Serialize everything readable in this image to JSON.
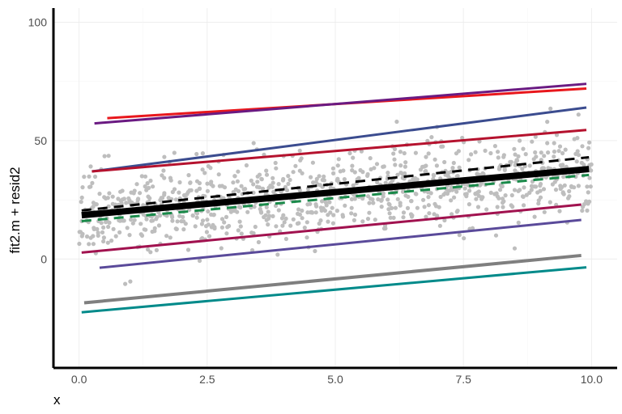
{
  "chart_data": {
    "type": "scatter",
    "title": "",
    "xlabel": "x",
    "ylabel": "fit2.m + resid2",
    "xlim": [
      -0.5,
      10.5
    ],
    "ylim": [
      -46,
      106
    ],
    "x_ticks": [
      0,
      2.5,
      5,
      7.5,
      10
    ],
    "x_tick_labels": [
      "0.0",
      "2.5",
      "5.0",
      "7.5",
      "10.0"
    ],
    "y_ticks": [
      0,
      50,
      100
    ],
    "y_tick_labels": [
      "0",
      "50",
      "100"
    ],
    "grid": true,
    "legend": "none",
    "colors": {
      "points": "#bebebe",
      "axis": "#000000"
    },
    "points": {
      "n": 1000,
      "seed": 7,
      "x_range": [
        0,
        10
      ],
      "intercept": 18.5,
      "slope": 1.9,
      "residual_sd": 8.5,
      "outliers": [
        [
          0.9,
          -10.5
        ],
        [
          1.0,
          -9.5
        ],
        [
          8.5,
          4.5
        ],
        [
          9.2,
          63.5
        ],
        [
          6.2,
          58
        ]
      ]
    },
    "series": [
      {
        "x": [
          0.55,
          9.9
        ],
        "y": [
          59.5,
          72.0
        ],
        "color": "#e8171c",
        "width": 3,
        "dash": "solid"
      },
      {
        "x": [
          0.3,
          9.9
        ],
        "y": [
          57.3,
          74.0
        ],
        "color": "#6a1a82",
        "width": 3,
        "dash": "solid"
      },
      {
        "x": [
          0.25,
          9.9
        ],
        "y": [
          37.0,
          64.0
        ],
        "color": "#3b4c8f",
        "width": 3,
        "dash": "solid"
      },
      {
        "x": [
          0.25,
          9.9
        ],
        "y": [
          37.0,
          54.5
        ],
        "color": "#b5122e",
        "width": 3,
        "dash": "solid"
      },
      {
        "x": [
          0.05,
          9.95
        ],
        "y": [
          20.5,
          43.0
        ],
        "color": "#000000",
        "width": 3,
        "dash": "dash"
      },
      {
        "x": [
          0.05,
          9.95
        ],
        "y": [
          18.5,
          38.0
        ],
        "color": "#000000",
        "width": 8,
        "dash": "solid"
      },
      {
        "x": [
          0.05,
          9.95
        ],
        "y": [
          16.0,
          35.5
        ],
        "color": "#1a8a4a",
        "width": 3,
        "dash": "dash"
      },
      {
        "x": [
          0.05,
          9.8
        ],
        "y": [
          2.7,
          23.0
        ],
        "color": "#a1124f",
        "width": 3,
        "dash": "solid"
      },
      {
        "x": [
          0.4,
          9.8
        ],
        "y": [
          -3.7,
          16.5
        ],
        "color": "#5a4a9a",
        "width": 3,
        "dash": "solid"
      },
      {
        "x": [
          0.1,
          9.8
        ],
        "y": [
          -18.5,
          1.5
        ],
        "color": "#7f7f7f",
        "width": 4,
        "dash": "solid"
      },
      {
        "x": [
          0.05,
          9.9
        ],
        "y": [
          -22.5,
          -3.5
        ],
        "color": "#008a8a",
        "width": 3,
        "dash": "solid"
      }
    ]
  }
}
